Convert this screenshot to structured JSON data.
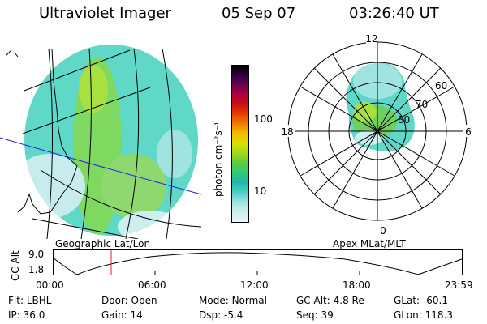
{
  "header": {
    "instrument": "Ultraviolet Imager",
    "date": "05 Sep 07",
    "time": "03:26:40 UT"
  },
  "colorbar": {
    "unit_label": "photon cm⁻²s⁻¹",
    "ticks": [
      "100",
      "10"
    ],
    "colors": [
      "#e8f6f8",
      "#cfeef0",
      "#9fe4e0",
      "#4fd0c8",
      "#1fb8a8",
      "#2fc87c",
      "#5ccc3c",
      "#9fd820",
      "#d8e000",
      "#f0c000",
      "#f08000",
      "#e84000",
      "#d01010",
      "#b00040",
      "#700050",
      "#300040",
      "#000000"
    ]
  },
  "geo_panel": {
    "label": "Geographic Lat/Lon"
  },
  "polar_panel": {
    "label": "Apex MLat/MLT",
    "mlt_labels": {
      "top": "12",
      "left": "18",
      "right": "6",
      "bottom": "0"
    },
    "lat_labels": [
      "60",
      "70",
      "80"
    ]
  },
  "altitude_plot": {
    "ylabel": "GC Alt",
    "y_ticks": [
      "9.0",
      "1.8"
    ],
    "x_ticks": [
      "00:00",
      "06:00",
      "12:00",
      "18:00",
      "23:59"
    ],
    "current_time_marker": "03:26:40"
  },
  "info": {
    "flt_label": "Flt:",
    "flt_value": "LBHL",
    "ip_label": "IP:",
    "ip_value": "36.0",
    "door_label": "Door:",
    "door_value": "Open",
    "gain_label": "Gain:",
    "gain_value": "14",
    "mode_label": "Mode:",
    "mode_value": "Normal",
    "dsp_label": "Dsp:",
    "dsp_value": "-5.4",
    "gcalt_label": "GC Alt:",
    "gcalt_value": "4.8 Re",
    "seq_label": "Seq:",
    "seq_value": "39",
    "glat_label": "GLat:",
    "glat_value": "-60.1",
    "glon_label": "GLon:",
    "glon_value": "118.3"
  }
}
